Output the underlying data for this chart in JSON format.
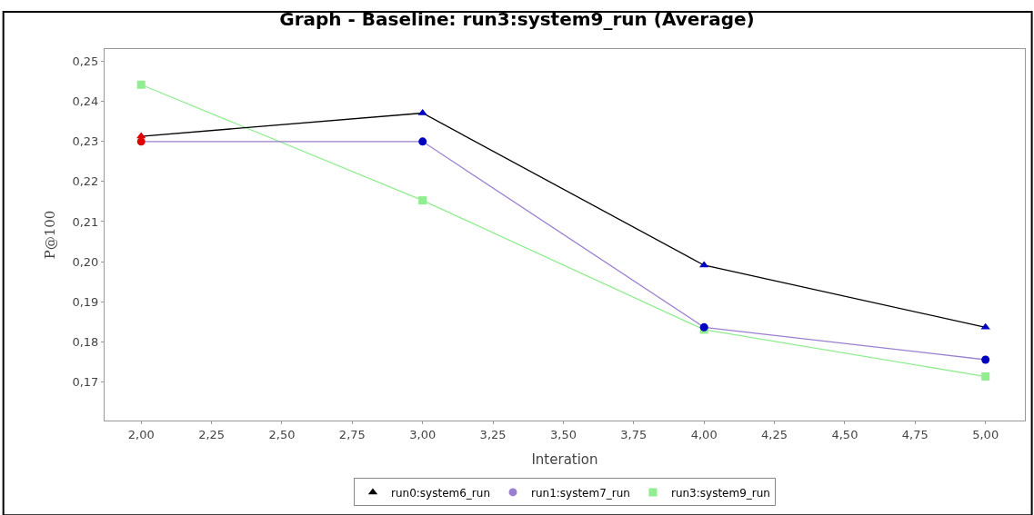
{
  "chart_data": {
    "type": "line",
    "title": "Graph - Baseline: run3:system9_run (Average)",
    "xlabel": "Interation",
    "ylabel": "P@100",
    "x": [
      2,
      3,
      4,
      5
    ],
    "series": [
      {
        "name": "run0:system6_run",
        "color": "#000000",
        "colors": [
          "#e00000",
          "#0000c0",
          "#0000c0",
          "#0000c0"
        ],
        "marker": "triangle",
        "values": [
          0.2313,
          0.2371,
          0.1991,
          0.1836
        ]
      },
      {
        "name": "run1:system7_run",
        "color": "#9b7fd0",
        "colors": [
          "#e00000",
          "#0000c0",
          "#0000c0",
          "#0000c0"
        ],
        "marker": "circle",
        "values": [
          0.23,
          0.23,
          0.1836,
          0.1755
        ]
      },
      {
        "name": "run3:system9_run",
        "color": "#90ee90",
        "colors": [
          "#90ee90",
          "#90ee90",
          "#90ee90",
          "#90ee90"
        ],
        "marker": "square",
        "values": [
          0.2442,
          0.2153,
          0.183,
          0.1713
        ]
      }
    ],
    "xlim": [
      1.87,
      5.14
    ],
    "ylim": [
      0.1603,
      0.2531
    ],
    "xticks": [
      {
        "value": 2,
        "label": "2,00"
      },
      {
        "value": 2.25,
        "label": "2,25"
      },
      {
        "value": 2.5,
        "label": "2,50"
      },
      {
        "value": 2.75,
        "label": "2,75"
      },
      {
        "value": 3,
        "label": "3,00"
      },
      {
        "value": 3.25,
        "label": "3,25"
      },
      {
        "value": 3.5,
        "label": "3,50"
      },
      {
        "value": 3.75,
        "label": "3,75"
      },
      {
        "value": 4,
        "label": "4,00"
      },
      {
        "value": 4.25,
        "label": "4,25"
      },
      {
        "value": 4.5,
        "label": "4,50"
      },
      {
        "value": 4.75,
        "label": "4,75"
      },
      {
        "value": 5,
        "label": "5,00"
      }
    ],
    "yticks": [
      {
        "value": 0.17,
        "label": "0,17"
      },
      {
        "value": 0.18,
        "label": "0,18"
      },
      {
        "value": 0.19,
        "label": "0,19"
      },
      {
        "value": 0.2,
        "label": "0,20"
      },
      {
        "value": 0.21,
        "label": "0,21"
      },
      {
        "value": 0.22,
        "label": "0,22"
      },
      {
        "value": 0.23,
        "label": "0,23"
      },
      {
        "value": 0.24,
        "label": "0,24"
      },
      {
        "value": 0.25,
        "label": "0,25"
      }
    ],
    "legend": "bottom",
    "line_style": "solid"
  }
}
